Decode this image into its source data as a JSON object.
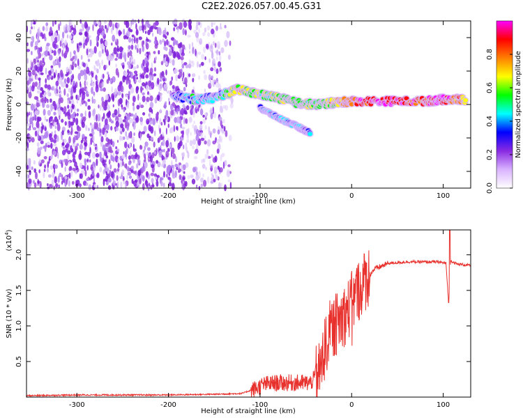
{
  "chart_data": [
    {
      "type": "heatmap",
      "title": "C2E2.2026.057.00.45.G31",
      "xlabel": "Height of straight line (km)",
      "ylabel": "Frequency (Hz)",
      "xlim": [
        -355,
        130
      ],
      "ylim": [
        -50,
        50
      ],
      "xticks": [
        -300,
        -200,
        -100,
        0,
        100
      ],
      "yticks": [
        -40,
        -20,
        0,
        20,
        40
      ],
      "colorbar": {
        "label": "Normalized spectral amplitude",
        "range": [
          0,
          1
        ],
        "ticks": [
          "0.0",
          "0.2",
          "0.4",
          "0.6",
          "0.8"
        ],
        "tick_values": [
          0,
          0.2,
          0.4,
          0.6,
          0.8
        ],
        "colors": [
          "#ffffff",
          "#d9b3ff",
          "#8a2be2",
          "#0000ff",
          "#00ffff",
          "#00ff00",
          "#ffff00",
          "#ff8000",
          "#ff0000",
          "#ff00ff"
        ]
      },
      "signal_track": [
        {
          "x": -195,
          "freq": 5,
          "amp": 0.3
        },
        {
          "x": -170,
          "freq": 3,
          "amp": 0.45
        },
        {
          "x": -150,
          "freq": 4,
          "amp": 0.35
        },
        {
          "x": -125,
          "freq": 9,
          "amp": 0.7
        },
        {
          "x": -100,
          "freq": 6,
          "amp": 0.55
        },
        {
          "x": -80,
          "freq": 4,
          "amp": 0.6
        },
        {
          "x": -60,
          "freq": 1,
          "amp": 0.6
        },
        {
          "x": -40,
          "freq": 0,
          "amp": 0.55
        },
        {
          "x": -20,
          "freq": 1,
          "amp": 0.65
        },
        {
          "x": 0,
          "freq": 2,
          "amp": 0.85
        },
        {
          "x": 40,
          "freq": 2,
          "amp": 0.95
        },
        {
          "x": 80,
          "freq": 2,
          "amp": 0.85
        },
        {
          "x": 100,
          "freq": 3,
          "amp": 0.95
        },
        {
          "x": 125,
          "freq": 3,
          "amp": 0.7
        }
      ],
      "secondary_track": [
        {
          "x": -100,
          "freq": -2,
          "amp": 0.4
        },
        {
          "x": -80,
          "freq": -8,
          "amp": 0.4
        },
        {
          "x": -60,
          "freq": -13,
          "amp": 0.35
        },
        {
          "x": -45,
          "freq": -17,
          "amp": 0.3
        }
      ]
    },
    {
      "type": "line",
      "xlabel": "Height of straight line (km)",
      "ylabel": "SNR (10 * v/v)",
      "y_multiplier": "(x10",
      "y_exponent": "4",
      "y_multiplier_close": ")",
      "xlim": [
        -355,
        130
      ],
      "ylim": [
        0,
        2.35
      ],
      "xticks": [
        -300,
        -200,
        -100,
        0,
        100
      ],
      "yticks": [
        "0.5",
        "1.0",
        "1.5",
        "2.0"
      ],
      "ytick_values": [
        0.5,
        1.0,
        1.5,
        2.0
      ],
      "color": "#e8302c",
      "series": [
        {
          "name": "SNR",
          "x": [
            -355,
            -300,
            -250,
            -200,
            -150,
            -120,
            -105,
            -95,
            -80,
            -60,
            -45,
            -35,
            -25,
            -15,
            -5,
            5,
            15,
            25,
            40,
            60,
            80,
            95,
            103,
            106,
            108,
            115,
            130
          ],
          "y": [
            0.02,
            0.03,
            0.03,
            0.03,
            0.04,
            0.05,
            0.12,
            0.18,
            0.2,
            0.2,
            0.2,
            0.35,
            0.9,
            1.05,
            1.2,
            1.45,
            1.65,
            1.8,
            1.88,
            1.9,
            1.9,
            1.9,
            1.88,
            1.3,
            1.92,
            1.87,
            1.85
          ]
        }
      ]
    }
  ]
}
